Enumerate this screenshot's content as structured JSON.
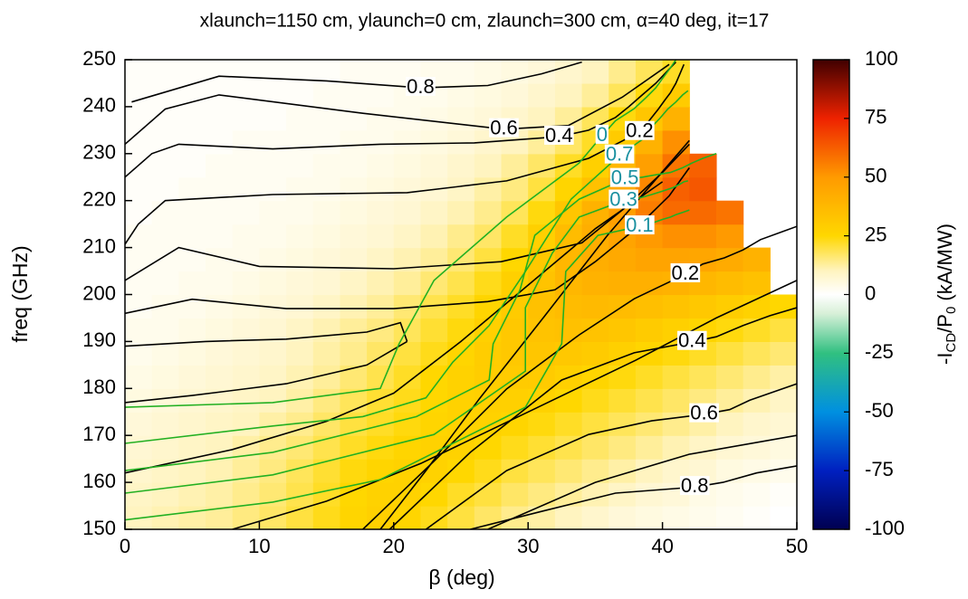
{
  "chart_data": {
    "type": "heatmap",
    "title": "xlaunch=1150 cm, ylaunch=0 cm, zlaunch=300 cm, α=40 deg, it=17",
    "x_label": "β (deg)",
    "y_label": "freq (GHz)",
    "colorbar_label": [
      "-I",
      "CD",
      "/P",
      "0",
      " (kA/MW)"
    ],
    "xlim": [
      0,
      50
    ],
    "xticks": [
      0,
      10,
      20,
      30,
      40,
      50
    ],
    "ylim": [
      150,
      250
    ],
    "yticks": [
      150,
      160,
      170,
      180,
      190,
      200,
      210,
      220,
      230,
      240,
      250
    ],
    "zlim": [
      -100,
      100
    ],
    "zticks": [
      100,
      75,
      50,
      25,
      0,
      -25,
      -50,
      -75,
      -100
    ],
    "colorscale": [
      {
        "value": -100,
        "color": "#000050"
      },
      {
        "value": -75,
        "color": "#0020c0"
      },
      {
        "value": -50,
        "color": "#0090e0"
      },
      {
        "value": -25,
        "color": "#30c080"
      },
      {
        "value": -8,
        "color": "#d8f0d8"
      },
      {
        "value": 0,
        "color": "#ffffff"
      },
      {
        "value": 10,
        "color": "#fff4c0"
      },
      {
        "value": 25,
        "color": "#ffd700"
      },
      {
        "value": 50,
        "color": "#ff9a00"
      },
      {
        "value": 75,
        "color": "#ee2200"
      },
      {
        "value": 100,
        "color": "#400000"
      }
    ],
    "x_bins": [
      0,
      2,
      4,
      6,
      8,
      10,
      12,
      14,
      16,
      18,
      20,
      22,
      24,
      26,
      28,
      30,
      32,
      34,
      36,
      38,
      40,
      42,
      44,
      46,
      48,
      50
    ],
    "y_bins": [
      150,
      155,
      160,
      165,
      170,
      175,
      180,
      185,
      190,
      195,
      200,
      205,
      210,
      215,
      220,
      225,
      230,
      235,
      240,
      245,
      250
    ],
    "z": [
      [
        10,
        11,
        12,
        13,
        15,
        17,
        20,
        23,
        26,
        28,
        26,
        23,
        20,
        17,
        14,
        12,
        10,
        8,
        6,
        5,
        4,
        3,
        2,
        1,
        0
      ],
      [
        9,
        10,
        11,
        12,
        14,
        16,
        19,
        22,
        25,
        27,
        27,
        25,
        22,
        20,
        17,
        15,
        13,
        11,
        9,
        7,
        6,
        4,
        3,
        2,
        1
      ],
      [
        8,
        9,
        10,
        11,
        13,
        15,
        18,
        21,
        24,
        26,
        27,
        27,
        25,
        23,
        20,
        18,
        16,
        14,
        12,
        10,
        8,
        7,
        5,
        4,
        3
      ],
      [
        7,
        8,
        9,
        10,
        12,
        14,
        16,
        19,
        22,
        24,
        26,
        27,
        27,
        25,
        23,
        21,
        19,
        17,
        15,
        13,
        11,
        9,
        7,
        6,
        5
      ],
      [
        6,
        7,
        8,
        9,
        10,
        12,
        14,
        17,
        20,
        22,
        24,
        26,
        27,
        27,
        26,
        24,
        22,
        20,
        18,
        16,
        14,
        12,
        10,
        8,
        7
      ],
      [
        5,
        6,
        7,
        8,
        9,
        10,
        12,
        15,
        18,
        21,
        23,
        25,
        27,
        28,
        28,
        27,
        25,
        23,
        21,
        19,
        17,
        15,
        13,
        11,
        9
      ],
      [
        4,
        5,
        6,
        7,
        8,
        9,
        11,
        13,
        16,
        19,
        22,
        25,
        27,
        29,
        30,
        30,
        28,
        26,
        24,
        22,
        20,
        18,
        16,
        14,
        12
      ],
      [
        3,
        4,
        5,
        6,
        7,
        8,
        10,
        12,
        14,
        17,
        20,
        23,
        26,
        29,
        31,
        32,
        31,
        30,
        28,
        26,
        24,
        22,
        20,
        18,
        16
      ],
      [
        3,
        3,
        4,
        5,
        6,
        7,
        9,
        11,
        13,
        15,
        18,
        21,
        24,
        28,
        31,
        33,
        34,
        33,
        32,
        30,
        28,
        26,
        24,
        22,
        20
      ],
      [
        2,
        3,
        3,
        4,
        5,
        6,
        7,
        9,
        11,
        13,
        16,
        19,
        22,
        26,
        30,
        34,
        36,
        37,
        36,
        35,
        33,
        31,
        29,
        27,
        25
      ],
      [
        2,
        2,
        3,
        3,
        4,
        5,
        6,
        7,
        9,
        11,
        13,
        16,
        19,
        23,
        28,
        33,
        38,
        40,
        41,
        41,
        40,
        38,
        36,
        34,
        null
      ],
      [
        2,
        2,
        2,
        3,
        3,
        4,
        5,
        6,
        7,
        9,
        11,
        13,
        16,
        20,
        25,
        31,
        38,
        42,
        44,
        46,
        46,
        45,
        43,
        40,
        null
      ],
      [
        2,
        2,
        2,
        2,
        3,
        3,
        4,
        5,
        6,
        7,
        9,
        11,
        14,
        17,
        22,
        28,
        36,
        42,
        46,
        50,
        52,
        52,
        50,
        null,
        null
      ],
      [
        1,
        2,
        2,
        2,
        2,
        3,
        3,
        4,
        5,
        6,
        7,
        9,
        11,
        14,
        18,
        24,
        32,
        40,
        48,
        56,
        60,
        60,
        58,
        null,
        null
      ],
      [
        1,
        1,
        2,
        2,
        2,
        2,
        3,
        3,
        4,
        5,
        6,
        7,
        9,
        12,
        15,
        20,
        26,
        34,
        44,
        54,
        62,
        64,
        null,
        null,
        null
      ],
      [
        1,
        1,
        1,
        2,
        2,
        2,
        2,
        3,
        3,
        4,
        5,
        6,
        8,
        10,
        13,
        17,
        22,
        28,
        38,
        48,
        58,
        62,
        null,
        null,
        null
      ],
      [
        1,
        1,
        1,
        1,
        2,
        2,
        2,
        2,
        3,
        3,
        4,
        5,
        6,
        8,
        10,
        13,
        17,
        22,
        30,
        40,
        52,
        null,
        null,
        null,
        null
      ],
      [
        1,
        1,
        1,
        1,
        1,
        1,
        2,
        2,
        2,
        3,
        3,
        4,
        5,
        6,
        8,
        10,
        13,
        18,
        24,
        32,
        40,
        null,
        null,
        null,
        null
      ],
      [
        1,
        1,
        1,
        1,
        1,
        1,
        1,
        2,
        2,
        2,
        3,
        3,
        4,
        5,
        6,
        8,
        10,
        13,
        18,
        24,
        30,
        null,
        null,
        null,
        null
      ],
      [
        1,
        1,
        1,
        1,
        1,
        1,
        1,
        1,
        2,
        2,
        2,
        3,
        3,
        4,
        5,
        6,
        8,
        10,
        14,
        18,
        22,
        null,
        null,
        null,
        null
      ]
    ],
    "contour_sets": [
      {
        "color": "#000000",
        "label_color": "#000000",
        "contours": [
          {
            "level": 0.8,
            "x": [
              0.5,
              7,
              15,
              22,
              27,
              31,
              34
            ],
            "y": [
              241,
              246.5,
              245.5,
              244,
              244.5,
              247,
              249.5
            ]
          },
          {
            "level": 0.6,
            "x": [
              0,
              3,
              7,
              17.7,
              28.2,
              33,
              37,
              40.5
            ],
            "y": [
              232,
              239.5,
              242.5,
              238.6,
              235.2,
              236,
              242,
              249
            ]
          },
          {
            "level": 0.4,
            "x": [
              0,
              2,
              4,
              11,
              19,
              26,
              32.3,
              34.5,
              36.5,
              37.5,
              38.5,
              39.5,
              41
            ],
            "y": [
              225,
              230,
              232,
              231,
              232,
              232.3,
              233.6,
              235,
              237.7,
              240,
              242.5,
              245,
              249.5
            ]
          },
          {
            "level": 0.2,
            "x": [
              0,
              1,
              3,
              11,
              21,
              28.4,
              34.5,
              38.3,
              39,
              39.7,
              40.2,
              40.6,
              41,
              41.3,
              41.6
            ],
            "y": [
              210.7,
              215,
              220,
              221.3,
              221.7,
              224.2,
              229,
              234.6,
              237,
              239.5,
              241.5,
              243,
              245,
              247,
              249
            ]
          },
          {
            "level": 0.2,
            "x": [
              17.7,
              23,
              28.4,
              33.8,
              37.9,
              41.7,
              43,
              44.6,
              46,
              47.3,
              50
            ],
            "y": [
              150,
              164.5,
              179.9,
              191.4,
              199.1,
              204.3,
              206.5,
              207.8,
              209.5,
              211.7,
              214.5
            ]
          },
          {
            "level": 0.4,
            "x": [
              19.7,
              25.7,
              32.5,
              37.9,
              42.2,
              44,
              46,
              48,
              50
            ],
            "y": [
              150,
              166.4,
              181.8,
              187.6,
              189.9,
              191,
              193.4,
              195.5,
              197.2
            ]
          },
          {
            "level": 0.6,
            "x": [
              22.4,
              28.4,
              34.5,
              39.2,
              43.1,
              45,
              46.5,
              48,
              50
            ],
            "y": [
              150,
              162.5,
              170.2,
              173.1,
              174.5,
              175.5,
              177.5,
              179,
              181
            ]
          },
          {
            "level": 0.8,
            "x": [
              25.7,
              31.1,
              36.5,
              42.4,
              44.5,
              47,
              50
            ],
            "y": [
              150,
              153.9,
              157.7,
              159,
              160,
              162,
              163.5
            ]
          },
          {
            "x": [
              0,
              4,
              10,
              20,
              28,
              34,
              37,
              40,
              42
            ],
            "y": [
              203,
              210,
              206,
              205.5,
              207,
              211,
              218,
              226,
              232
            ]
          },
          {
            "x": [
              0,
              5,
              12,
              20,
              27,
              32,
              35,
              38,
              40.5,
              42
            ],
            "y": [
              196,
              199,
              197,
              197,
              198.5,
              201,
              207,
              214,
              221,
              227
            ]
          },
          {
            "x": [
              0,
              6,
              12,
              18,
              20.5,
              21
            ],
            "y": [
              189,
              190,
              190.5,
              192,
              194,
              190
            ]
          },
          {
            "x": [
              0,
              5,
              12,
              18,
              21
            ],
            "y": [
              177,
              178.5,
              181,
              185,
              190
            ]
          },
          {
            "x": [
              42,
              35.9,
              31.2,
              26.4,
              22.4,
              19
            ],
            "y": [
              232.8,
              212.6,
              195.3,
              177.9,
              162.5,
              150
            ]
          },
          {
            "x": [
              0,
              8,
              15,
              20,
              25,
              30,
              35,
              40
            ],
            "y": [
              162,
              167,
              173,
              179,
              190,
              202,
              214,
              224
            ]
          },
          {
            "x": [
              8,
              15,
              22,
              30,
              38,
              44,
              50
            ],
            "y": [
              150,
              156,
              164,
              175,
              186,
              195,
              203
            ]
          },
          {
            "x": [
              27,
              35,
              42,
              50
            ],
            "y": [
              150,
              160,
              166,
              170
            ]
          }
        ]
      },
      {
        "color": "#22b022",
        "label_color": "#1a90a0",
        "contours": [
          {
            "level": 0,
            "x": [
              0,
              11,
              19,
              20.4,
              23,
              28.4,
              33.8,
              35.5,
              36.5,
              37.9,
              38.8,
              39.5,
              40,
              40.6,
              41
            ],
            "y": [
              176,
              177,
              180,
              189.5,
              203,
              216.5,
              228,
              233.8,
              237,
              239.6,
              242,
              244,
              246,
              248.3,
              250
            ]
          },
          {
            "level": 0.7,
            "x": [
              0,
              11,
              17.7,
              22.4,
              24.4,
              27.1,
              29.8,
              33.2,
              36.8,
              37.5,
              38.5,
              39.2,
              39.8,
              40.4,
              41,
              41.5,
              41.9
            ],
            "y": [
              168.3,
              172,
              174,
              178,
              185.6,
              193.4,
              204.9,
              220.3,
              229.6,
              231,
              233,
              235.7,
              237.5,
              239.5,
              241,
              242.5,
              243.4
            ]
          },
          {
            "level": 0.5,
            "x": [
              0,
              11,
              21.7,
              27.1,
              27.4,
              29.4,
              30.5,
              33.8,
              37.2,
              38.5,
              39.5,
              40.6,
              41.5,
              42.2,
              43,
              43.5,
              44
            ],
            "y": [
              162.5,
              166.4,
              174,
              181.8,
              189.5,
              201,
              212.6,
              220.3,
              224.6,
              225,
              225.5,
              226,
              227,
              228,
              229,
              229.5,
              230
            ]
          },
          {
            "level": 0.3,
            "x": [
              0,
              11,
              23,
              29.8,
              29.8,
              31.8,
              33.8,
              37.1,
              38,
              39.2,
              40,
              40.8,
              41.3,
              41.6,
              41.9
            ],
            "y": [
              157.7,
              161.6,
              170.2,
              183.7,
              197.2,
              208.8,
              216.5,
              220,
              220.3,
              221.3,
              222,
              222.8,
              223.5,
              224,
              224.2
            ]
          },
          {
            "level": 0.1,
            "x": [
              0,
              11,
              19,
              29.8,
              32.5,
              32.8,
              35.2,
              38.3,
              39,
              39.5,
              40,
              40.6,
              41,
              41.5,
              42
            ],
            "y": [
              152,
              155.8,
              160.6,
              176,
              189.5,
              204.9,
              212.6,
              214.5,
              215,
              215.5,
              216,
              216.5,
              217,
              217.5,
              218
            ]
          }
        ]
      }
    ]
  }
}
